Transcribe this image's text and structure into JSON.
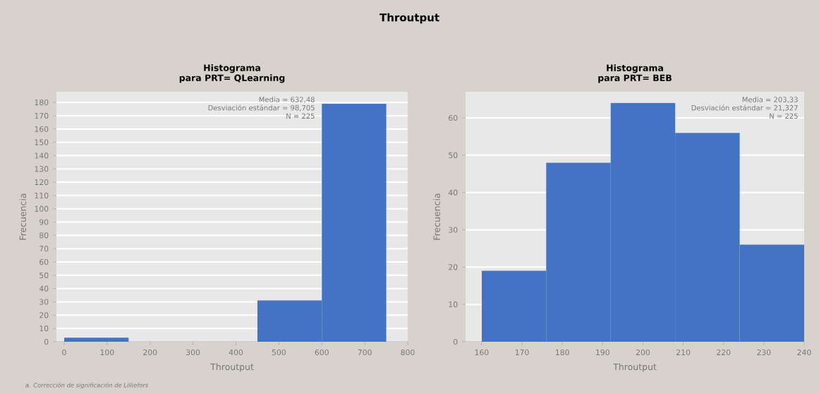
{
  "chart_data": [
    {
      "type": "histogram",
      "title": "Histograma",
      "subtitle": "para PRT= QLearning",
      "xlabel": "Throutput",
      "ylabel": "Frecuencia",
      "bins": [
        0,
        150,
        300,
        450,
        600,
        750
      ],
      "values": [
        3,
        0,
        0,
        31,
        179
      ],
      "color": "#4472c4",
      "xlim": [
        -18,
        800
      ],
      "ylim": [
        0,
        188
      ],
      "xticks": [
        0,
        100,
        200,
        300,
        400,
        500,
        600,
        700,
        800
      ],
      "yticks": [
        0,
        10,
        20,
        30,
        40,
        50,
        60,
        70,
        80,
        90,
        100,
        110,
        120,
        130,
        140,
        150,
        160,
        170,
        180
      ],
      "grid": "y",
      "annotations": [
        "Throutput",
        "Media = 632,48",
        "Desviación estándar = 98,705",
        "N = 225",
        "a. Corrección de significación de Lilliefors"
      ]
    },
    {
      "type": "histogram",
      "title": "Histograma",
      "subtitle": "para PRT= BEB",
      "xlabel": "Throutput",
      "ylabel": "Frecuencia",
      "bins": [
        160,
        176,
        192,
        208,
        224,
        240
      ],
      "values": [
        19,
        48,
        64,
        56,
        26
      ],
      "color": "#4472c4",
      "xlim": [
        156,
        240
      ],
      "ylim": [
        0,
        67
      ],
      "xticks": [
        160,
        170,
        180,
        190,
        200,
        210,
        220,
        230,
        240
      ],
      "yticks": [
        0,
        10,
        20,
        30,
        40,
        50,
        60
      ],
      "grid": "y",
      "annotations": [
        "Media = 203,33",
        "Desviación estándar = 21,327",
        "N = 225"
      ]
    }
  ]
}
